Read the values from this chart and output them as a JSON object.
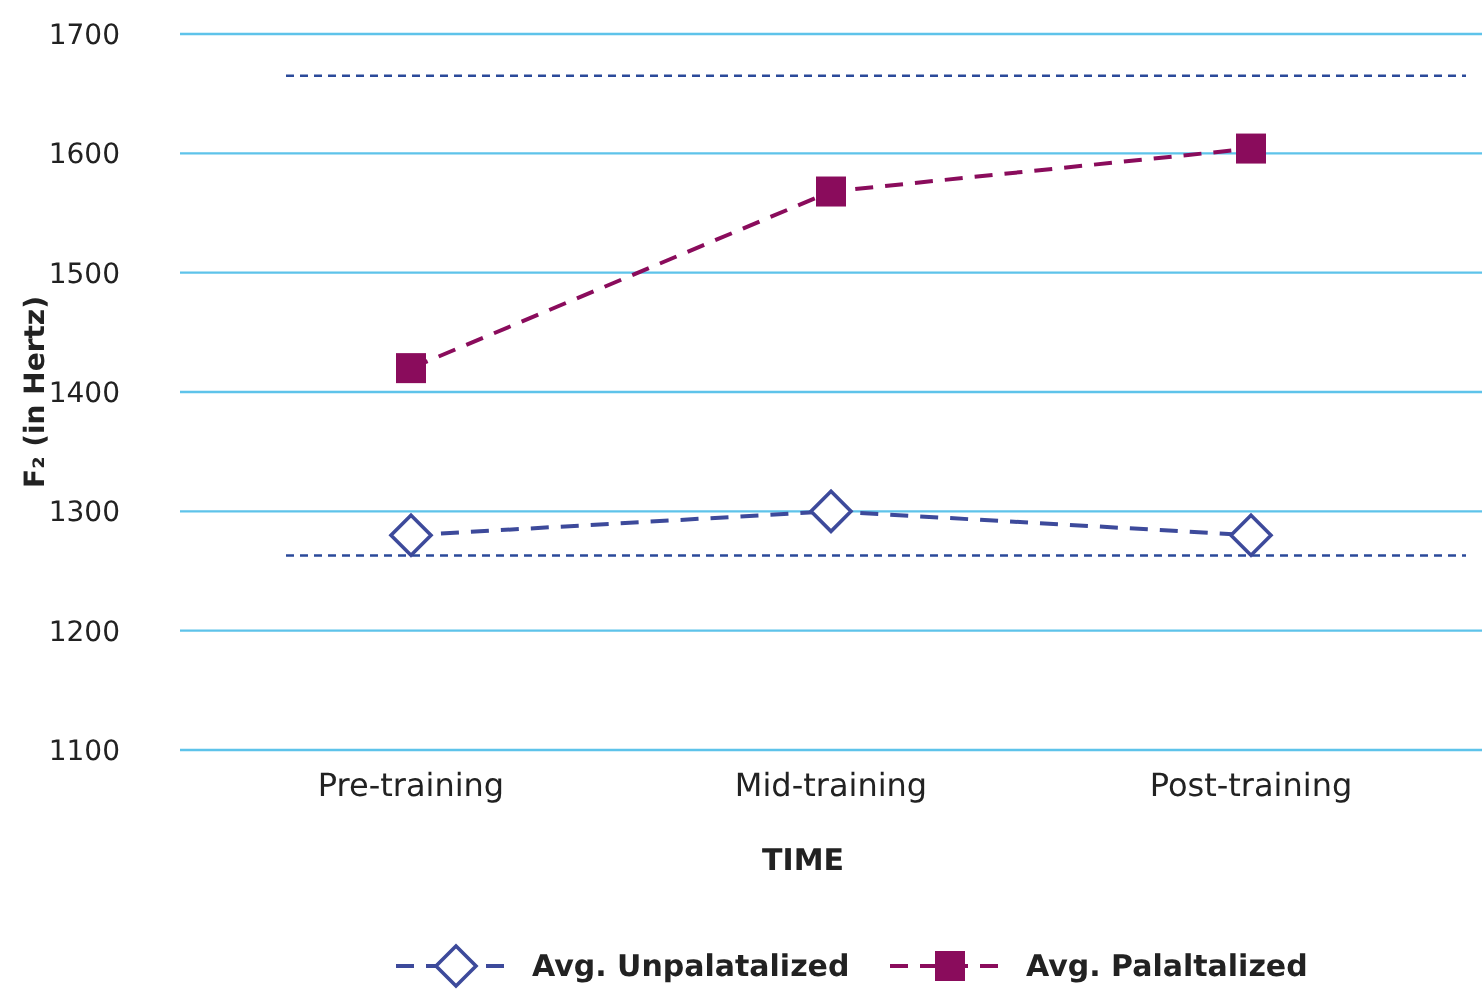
{
  "chart_data": {
    "type": "line",
    "xlabel": "TIME",
    "ylabel": "F₂ (in Hertz)",
    "categories": [
      "Pre-training",
      "Mid-training",
      "Post-training"
    ],
    "series": [
      {
        "name": "Avg. Unpalatalized",
        "color": "#3d4a9b",
        "values": [
          1280,
          1300,
          1280
        ],
        "marker": "diamond",
        "line_style": "dashed"
      },
      {
        "name": "Avg. Palaltalized",
        "color": "#8a0c5c",
        "values": [
          1420,
          1568,
          1604
        ],
        "marker": "square",
        "line_style": "dashed"
      }
    ],
    "ref_lines": [
      {
        "axis": "y",
        "value": 1665,
        "color": "#2b4a9a",
        "line_style": "dashed"
      },
      {
        "axis": "y",
        "value": 1263,
        "color": "#2b4a9a",
        "line_style": "dashed"
      }
    ],
    "ylim": [
      1100,
      1700
    ],
    "yticks": [
      1100,
      1200,
      1300,
      1400,
      1500,
      1600,
      1700
    ],
    "grid": "y",
    "legend": "bottom"
  }
}
